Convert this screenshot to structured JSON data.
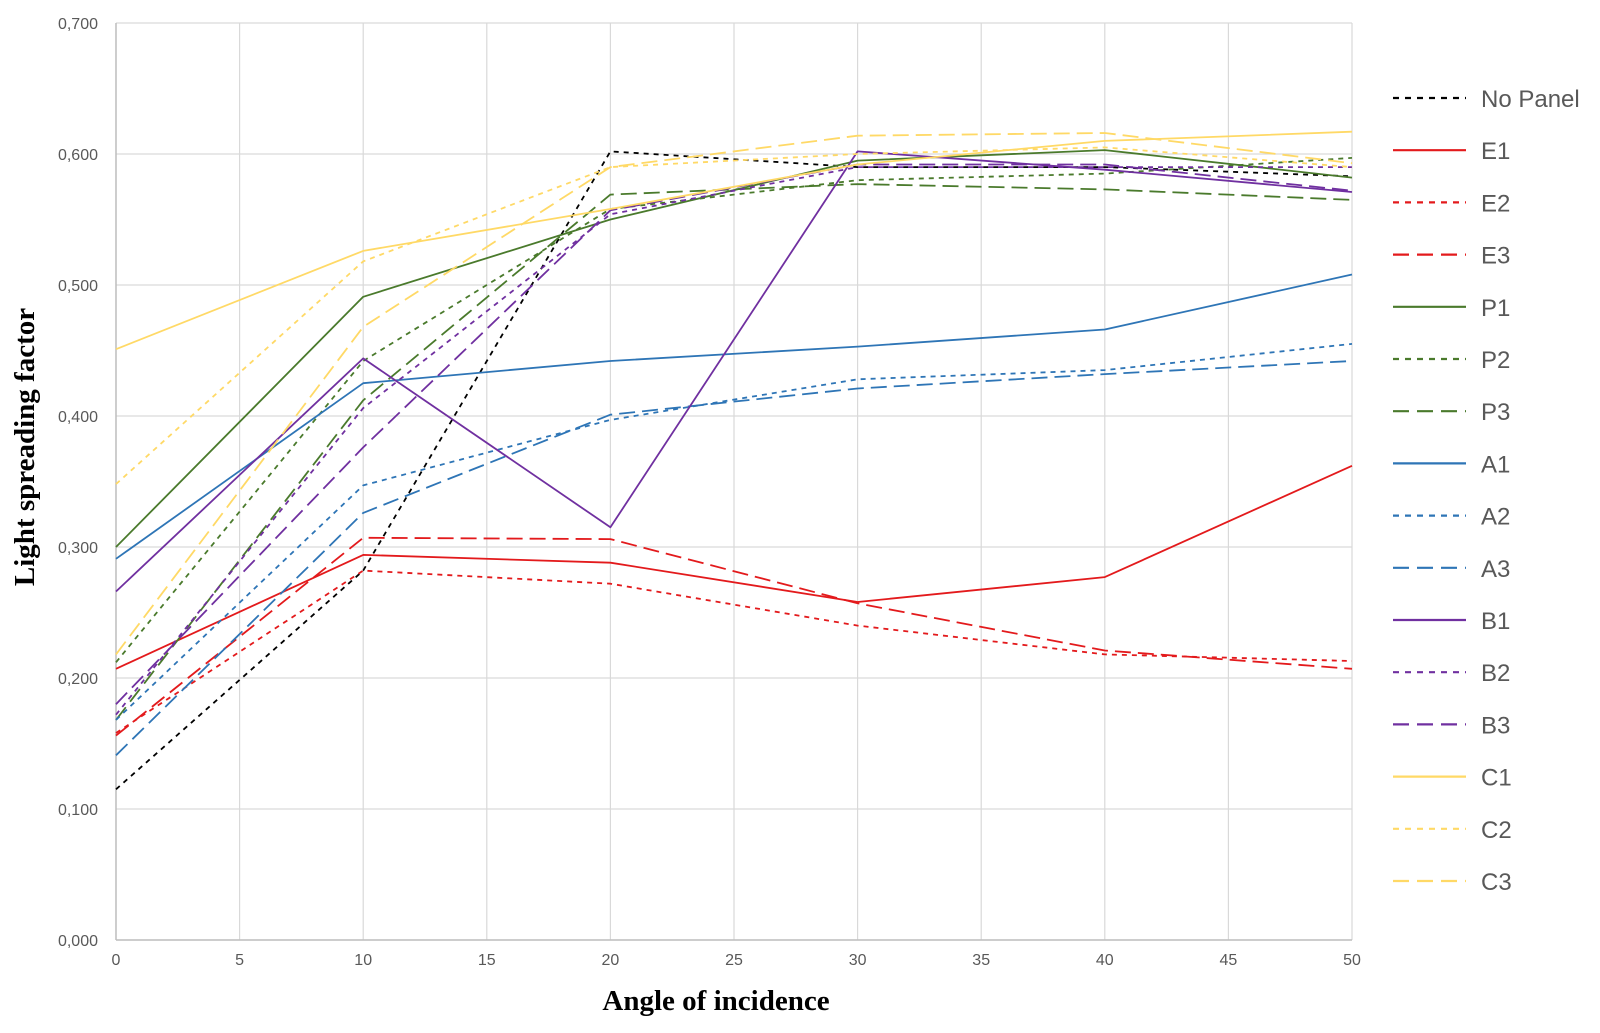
{
  "chart_data": {
    "type": "line",
    "title": "",
    "xlabel": "Angle of incidence",
    "ylabel": "Light spreading factor",
    "xlim": [
      0,
      50
    ],
    "ylim": [
      0,
      0.7
    ],
    "x_ticks": [
      "0",
      "5",
      "10",
      "15",
      "20",
      "25",
      "30",
      "35",
      "40",
      "45",
      "50"
    ],
    "y_ticks": [
      "0,000",
      "0,100",
      "0,200",
      "0,300",
      "0,400",
      "0,500",
      "0,600",
      "0,700"
    ],
    "grid": true,
    "legend_position": "right",
    "x": [
      0,
      10,
      20,
      30,
      40,
      50
    ],
    "series": [
      {
        "name": "No Panel",
        "color": "#000000",
        "dash": "short",
        "values": [
          0.115,
          0.282,
          0.602,
          0.59,
          0.59,
          0.583
        ]
      },
      {
        "name": "E1",
        "color": "#e31a1c",
        "dash": "solid",
        "values": [
          0.207,
          0.294,
          0.288,
          0.258,
          0.277,
          0.362
        ]
      },
      {
        "name": "E2",
        "color": "#e31a1c",
        "dash": "short",
        "values": [
          0.158,
          0.282,
          0.272,
          0.24,
          0.218,
          0.213
        ]
      },
      {
        "name": "E3",
        "color": "#e31a1c",
        "dash": "long",
        "values": [
          0.156,
          0.307,
          0.306,
          0.257,
          0.221,
          0.207
        ]
      },
      {
        "name": "P1",
        "color": "#4a7a2c",
        "dash": "solid",
        "values": [
          0.3,
          0.491,
          0.55,
          0.595,
          0.603,
          0.582
        ]
      },
      {
        "name": "P2",
        "color": "#4a7a2c",
        "dash": "short",
        "values": [
          0.212,
          0.442,
          0.558,
          0.58,
          0.585,
          0.597
        ]
      },
      {
        "name": "P3",
        "color": "#4a7a2c",
        "dash": "long",
        "values": [
          0.168,
          0.412,
          0.569,
          0.577,
          0.573,
          0.565
        ]
      },
      {
        "name": "A1",
        "color": "#2e75b6",
        "dash": "solid",
        "values": [
          0.291,
          0.425,
          0.442,
          0.453,
          0.466,
          0.508
        ]
      },
      {
        "name": "A2",
        "color": "#2e75b6",
        "dash": "short",
        "values": [
          0.168,
          0.347,
          0.397,
          0.428,
          0.435,
          0.455
        ]
      },
      {
        "name": "A3",
        "color": "#2e75b6",
        "dash": "long",
        "values": [
          0.141,
          0.326,
          0.401,
          0.421,
          0.432,
          0.442
        ]
      },
      {
        "name": "B1",
        "color": "#7030a0",
        "dash": "solid",
        "values": [
          0.266,
          0.444,
          0.315,
          0.602,
          0.588,
          0.571
        ]
      },
      {
        "name": "B2",
        "color": "#7030a0",
        "dash": "short",
        "values": [
          0.172,
          0.406,
          0.554,
          0.59,
          0.59,
          0.59
        ]
      },
      {
        "name": "B3",
        "color": "#7030a0",
        "dash": "long",
        "values": [
          0.18,
          0.376,
          0.557,
          0.592,
          0.592,
          0.572
        ]
      },
      {
        "name": "C1",
        "color": "#ffd966",
        "dash": "solid",
        "values": [
          0.451,
          0.526,
          0.558,
          0.592,
          0.61,
          0.617
        ]
      },
      {
        "name": "C2",
        "color": "#ffd966",
        "dash": "short",
        "values": [
          0.348,
          0.518,
          0.59,
          0.6,
          0.605,
          0.59
        ]
      },
      {
        "name": "C3",
        "color": "#ffd966",
        "dash": "long",
        "values": [
          0.218,
          0.468,
          0.59,
          0.614,
          0.616,
          0.593
        ]
      }
    ]
  }
}
